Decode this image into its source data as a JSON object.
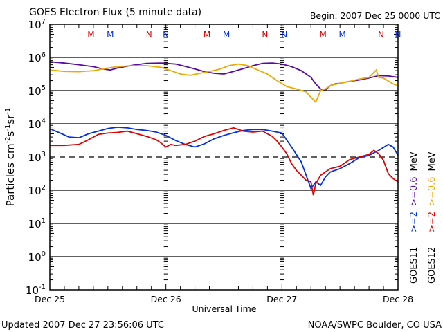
{
  "chart_data": {
    "type": "line",
    "title": "GOES Electron Flux (5 minute data)",
    "subtitle": "Begin: 2007 Dec 25 0000 UTC",
    "xlabel": "Universal Time",
    "ylabel": "Particles cm",
    "ylabel_parts": {
      "base": "Particles cm",
      "sup1": "-2",
      "s": "s",
      "sup2": "-1",
      "sr": "sr",
      "sup3": "-1"
    },
    "xlim_hours": [
      0,
      72
    ],
    "ylim_log10": [
      -1,
      7
    ],
    "yscale": "log",
    "x_ticks": [
      {
        "hour": 0,
        "label": "Dec 25"
      },
      {
        "hour": 24,
        "label": "Dec 26"
      },
      {
        "hour": 48,
        "label": "Dec 27"
      },
      {
        "hour": 72,
        "label": "Dec 28"
      }
    ],
    "y_ticks": [
      {
        "exp": 7,
        "base": "10",
        "sup": "7"
      },
      {
        "exp": 6,
        "base": "10",
        "sup": "6"
      },
      {
        "exp": 5,
        "base": "10",
        "sup": "5"
      },
      {
        "exp": 4,
        "base": "10",
        "sup": "4"
      },
      {
        "exp": 3,
        "base": "10",
        "sup": "3"
      },
      {
        "exp": 2,
        "base": "10",
        "sup": "2"
      },
      {
        "exp": 1,
        "base": "10",
        "sup": "1"
      },
      {
        "exp": 0,
        "base": "10",
        "sup": "0"
      },
      {
        "exp": -1,
        "base": "10",
        "sup": "-1"
      }
    ],
    "gridlines_log10": [
      6,
      5,
      4,
      2,
      1,
      0
    ],
    "dashed_threshold_log10": 3,
    "markers": [
      {
        "label": "M",
        "hour": 8.5,
        "color": "#e00000"
      },
      {
        "label": "M",
        "hour": 12.5,
        "color": "#0030e0"
      },
      {
        "label": "N",
        "hour": 20.5,
        "color": "#e00000"
      },
      {
        "label": "N",
        "hour": 24.0,
        "color": "#0030e0"
      },
      {
        "label": "M",
        "hour": 32.5,
        "color": "#e00000"
      },
      {
        "label": "M",
        "hour": 36.5,
        "color": "#0030e0"
      },
      {
        "label": "N",
        "hour": 44.5,
        "color": "#e00000"
      },
      {
        "label": "N",
        "hour": 48.5,
        "color": "#0030e0"
      },
      {
        "label": "M",
        "hour": 56.5,
        "color": "#e00000"
      },
      {
        "label": "M",
        "hour": 60.5,
        "color": "#0030e0"
      },
      {
        "label": "N",
        "hour": 68.5,
        "color": "#e00000"
      },
      {
        "label": "N",
        "hour": 72.0,
        "color": "#0030e0"
      }
    ],
    "series": [
      {
        "name": "GOES11 >=0.6 MeV",
        "color": "#5a0aa0",
        "hours": [
          0,
          3,
          6,
          9,
          11,
          12.5,
          14,
          17,
          20,
          23,
          26,
          28,
          30,
          32,
          34,
          36,
          38,
          40,
          42,
          44,
          46,
          48,
          50,
          52,
          54,
          55,
          56,
          57,
          58,
          59,
          60,
          62,
          64,
          66,
          68,
          70,
          72
        ],
        "log10": [
          5.87,
          5.83,
          5.78,
          5.72,
          5.65,
          5.62,
          5.68,
          5.76,
          5.82,
          5.83,
          5.8,
          5.73,
          5.65,
          5.57,
          5.52,
          5.5,
          5.58,
          5.66,
          5.75,
          5.82,
          5.83,
          5.8,
          5.72,
          5.6,
          5.4,
          5.2,
          5.05,
          5.02,
          5.15,
          5.2,
          5.22,
          5.28,
          5.32,
          5.38,
          5.45,
          5.44,
          5.4
        ]
      },
      {
        "name": "GOES12 >=0.6 MeV",
        "color": "#f0a800",
        "hours": [
          0,
          3,
          6,
          9,
          12,
          14,
          17,
          20,
          23,
          25,
          27,
          29,
          31,
          33,
          35,
          37,
          39,
          41,
          43,
          45,
          47,
          49,
          51,
          53,
          54,
          55,
          56,
          57,
          58,
          60,
          62,
          64,
          66,
          67.5,
          68,
          69,
          71,
          72
        ],
        "log10": [
          5.62,
          5.58,
          5.57,
          5.6,
          5.68,
          5.72,
          5.75,
          5.75,
          5.7,
          5.6,
          5.5,
          5.46,
          5.52,
          5.58,
          5.64,
          5.75,
          5.8,
          5.75,
          5.62,
          5.5,
          5.3,
          5.12,
          5.05,
          4.96,
          4.8,
          4.65,
          5.0,
          5.05,
          5.15,
          5.22,
          5.28,
          5.35,
          5.4,
          5.62,
          5.4,
          5.38,
          5.2,
          5.15
        ]
      },
      {
        "name": "GOES11 >=2 MeV",
        "color": "#0030e0",
        "hours": [
          0,
          2,
          4,
          6,
          8,
          10,
          12,
          14,
          16,
          18,
          20,
          22,
          24,
          26,
          28,
          30,
          32,
          34,
          36,
          38,
          40,
          42,
          44,
          46,
          48,
          50,
          52,
          53,
          54,
          55,
          56,
          57,
          58,
          60,
          62,
          64,
          66,
          68,
          70,
          71,
          72
        ],
        "log10": [
          3.85,
          3.73,
          3.6,
          3.58,
          3.7,
          3.78,
          3.86,
          3.9,
          3.88,
          3.83,
          3.8,
          3.75,
          3.65,
          3.5,
          3.38,
          3.3,
          3.4,
          3.55,
          3.65,
          3.73,
          3.8,
          3.83,
          3.83,
          3.78,
          3.72,
          3.3,
          2.85,
          2.45,
          2.05,
          2.25,
          2.15,
          2.4,
          2.55,
          2.65,
          2.8,
          2.98,
          3.05,
          3.2,
          3.38,
          3.3,
          3.05
        ]
      },
      {
        "name": "GOES12 >=2 MeV",
        "color": "#e00000",
        "hours": [
          0,
          3,
          6,
          8,
          10,
          12,
          14,
          16,
          18,
          20,
          22,
          23,
          24,
          25,
          26,
          28,
          30,
          32,
          34,
          36,
          38,
          40,
          42,
          44,
          45,
          46,
          47,
          48,
          49,
          50,
          51,
          52,
          53,
          54,
          54.5,
          55,
          56,
          58,
          60,
          62,
          64,
          66,
          67,
          68,
          69,
          70,
          71,
          72
        ],
        "log10": [
          3.35,
          3.35,
          3.38,
          3.52,
          3.68,
          3.72,
          3.74,
          3.78,
          3.7,
          3.62,
          3.52,
          3.42,
          3.3,
          3.38,
          3.35,
          3.38,
          3.48,
          3.62,
          3.7,
          3.8,
          3.88,
          3.78,
          3.75,
          3.78,
          3.7,
          3.62,
          3.48,
          3.3,
          3.1,
          2.8,
          2.6,
          2.45,
          2.3,
          2.25,
          1.85,
          2.2,
          2.45,
          2.65,
          2.72,
          2.92,
          3.0,
          3.08,
          3.2,
          3.1,
          2.9,
          2.5,
          2.35,
          2.25
        ]
      }
    ],
    "legend": {
      "placement": "right-vertical",
      "column1": [
        {
          "text": ">=2",
          "color": "#0030e0"
        },
        {
          "text": ">=0.6",
          "color": "#5a0aa0"
        },
        {
          "text": "MeV",
          "color": "#000000"
        }
      ],
      "column2": [
        {
          "text": ">=2",
          "color": "#e00000"
        },
        {
          "text": ">=0.6",
          "color": "#f0a800"
        },
        {
          "text": "MeV",
          "color": "#000000"
        }
      ],
      "satellites": [
        "GOES11",
        "GOES12"
      ]
    }
  },
  "footer": {
    "updated": "Updated 2007 Dec 27 23:56:06 UTC",
    "credit": "NOAA/SWPC Boulder, CO USA"
  }
}
